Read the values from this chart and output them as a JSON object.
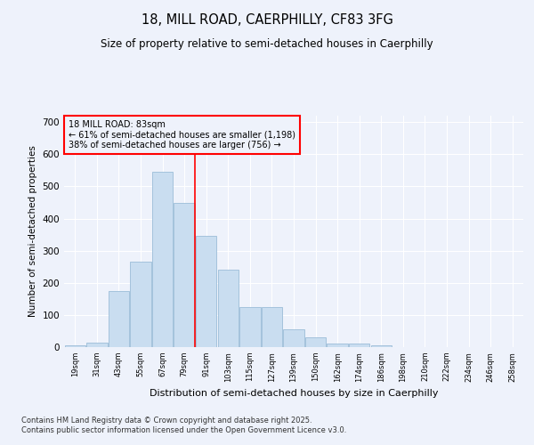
{
  "title1": "18, MILL ROAD, CAERPHILLY, CF83 3FG",
  "title2": "Size of property relative to semi-detached houses in Caerphilly",
  "xlabel": "Distribution of semi-detached houses by size in Caerphilly",
  "ylabel": "Number of semi-detached properties",
  "bar_color": "#c9ddf0",
  "bar_edge_color": "#9bbdd8",
  "categories": [
    "19sqm",
    "31sqm",
    "43sqm",
    "55sqm",
    "67sqm",
    "79sqm",
    "91sqm",
    "103sqm",
    "115sqm",
    "127sqm",
    "139sqm",
    "150sqm",
    "162sqm",
    "174sqm",
    "186sqm",
    "198sqm",
    "210sqm",
    "222sqm",
    "234sqm",
    "246sqm",
    "258sqm"
  ],
  "values": [
    5,
    15,
    175,
    265,
    545,
    450,
    345,
    240,
    125,
    125,
    55,
    30,
    10,
    10,
    5,
    0,
    0,
    0,
    0,
    0,
    0
  ],
  "red_line_x": 5.5,
  "annotation_title": "18 MILL ROAD: 83sqm",
  "annotation_line1": "← 61% of semi-detached houses are smaller (1,198)",
  "annotation_line2": "38% of semi-detached houses are larger (756) →",
  "ylim": [
    0,
    720
  ],
  "yticks": [
    0,
    100,
    200,
    300,
    400,
    500,
    600,
    700
  ],
  "footnote1": "Contains HM Land Registry data © Crown copyright and database right 2025.",
  "footnote2": "Contains public sector information licensed under the Open Government Licence v3.0.",
  "bg_color": "#eef2fb",
  "grid_color": "#ffffff"
}
